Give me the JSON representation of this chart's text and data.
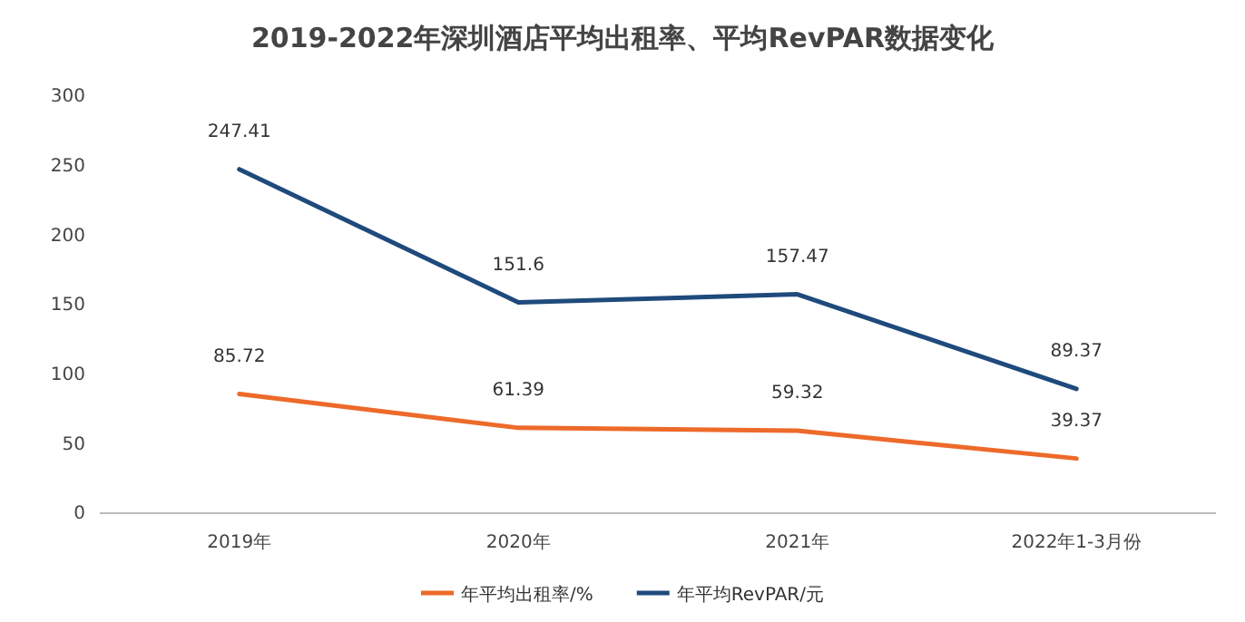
{
  "chart_data": {
    "type": "line",
    "title": "2019-2022年深圳酒店平均出租率、平均RevPAR数据变化",
    "categories": [
      "2019年",
      "2020年",
      "2021年",
      "2022年1-3月份"
    ],
    "series": [
      {
        "name": "年平均出租率/%",
        "color": "#ed6a2a",
        "values": [
          85.72,
          61.39,
          59.32,
          39.37
        ]
      },
      {
        "name": "年平均RevPAR/元",
        "color": "#1f4a7c",
        "values": [
          247.41,
          151.6,
          157.47,
          89.37
        ]
      }
    ],
    "ylim": [
      0,
      300
    ],
    "yticks": [
      0,
      50,
      100,
      150,
      200,
      250,
      300
    ],
    "grid": false,
    "legend": "bottom",
    "data_labels": true,
    "marker": "none"
  }
}
